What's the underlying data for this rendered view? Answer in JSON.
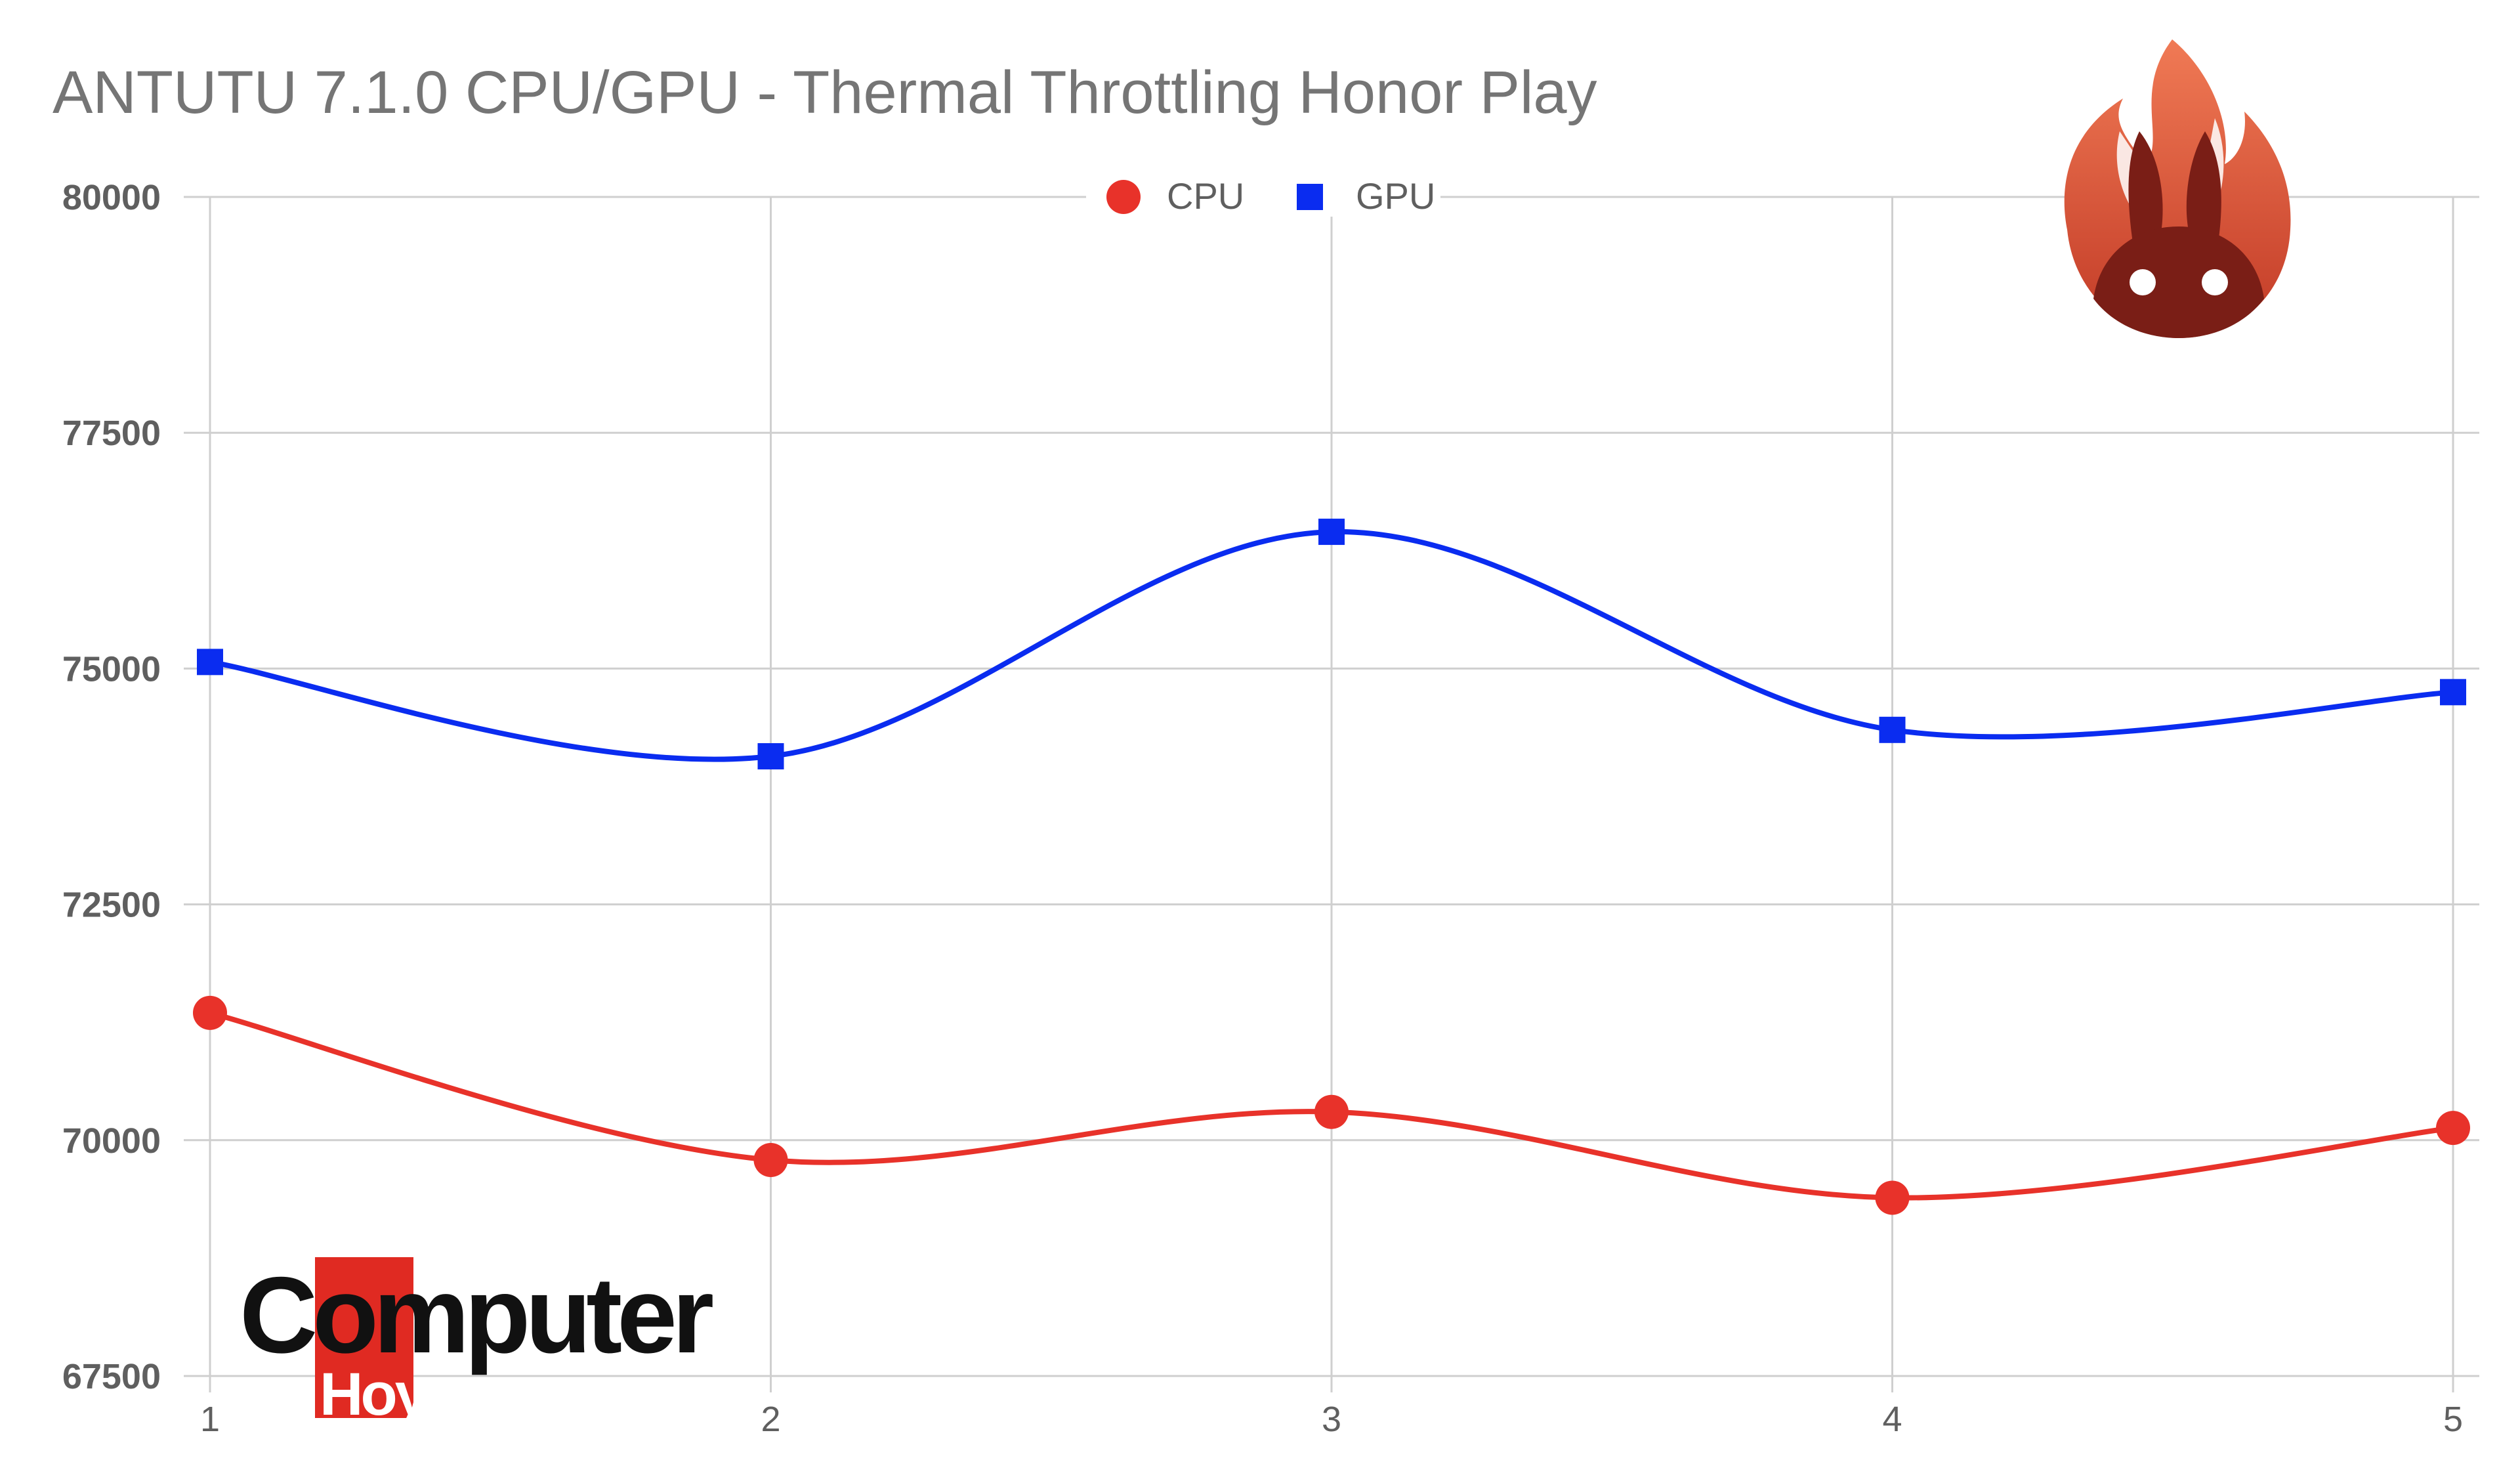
{
  "chart_data": {
    "type": "line",
    "title": "ANTUTU 7.1.0 CPU/GPU - Thermal Throttling Honor Play",
    "x": [
      "1",
      "2",
      "3",
      "4",
      "5"
    ],
    "series": [
      {
        "name": "CPU",
        "values": [
          71350,
          69790,
          70300,
          69390,
          70130
        ],
        "color": "#e8322a",
        "marker": "circle"
      },
      {
        "name": "GPU",
        "values": [
          75070,
          74070,
          76450,
          74350,
          74750
        ],
        "color": "#0a2cf0",
        "marker": "square"
      }
    ],
    "yticks": [
      "80000",
      "77500",
      "75000",
      "72500",
      "70000",
      "67500"
    ],
    "ylim": [
      67500,
      80000
    ],
    "grid": true,
    "legend": "top-center",
    "smooth": true
  },
  "logos": {
    "publisher": {
      "word": "Computer",
      "sub": "Hoy"
    },
    "antutu_icon": "fire-rabbit-icon"
  }
}
